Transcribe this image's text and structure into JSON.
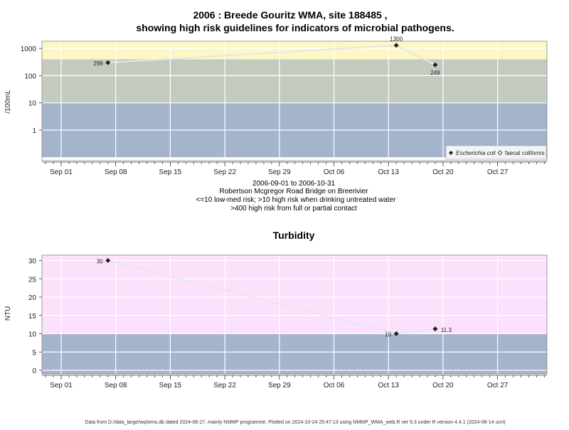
{
  "chart_data": [
    {
      "type": "scatter",
      "title_line1": "2006 : Breede Gouritz WMA, site 188485 ,",
      "title_line2": "showing high risk guidelines for indicators of microbial pathogens.",
      "ylabel": "/100mL",
      "yscale": "log",
      "yticks": [
        "1",
        "10",
        "100",
        "1000"
      ],
      "xticks": [
        "Sep 01",
        "Sep 08",
        "Sep 15",
        "Sep 22",
        "Sep 29",
        "Oct 06",
        "Oct 13",
        "Oct 20",
        "Oct 27"
      ],
      "bands": [
        {
          "from": 0.1,
          "to": 10,
          "color": "#a3b4cc"
        },
        {
          "from": 10,
          "to": 400,
          "color": "#c3cbc0"
        },
        {
          "from": 400,
          "to": 2000,
          "color": "#fcf7c5"
        }
      ],
      "series": [
        {
          "name": "Escherichia coli",
          "marker": "filled-diamond",
          "points": [
            {
              "x": "2006-09-07",
              "y": 299,
              "label": "299"
            },
            {
              "x": "2006-10-14",
              "y": 1300,
              "label": "1300"
            },
            {
              "x": "2006-10-19",
              "y": 249,
              "label": "249"
            }
          ]
        },
        {
          "name": "faecal coliforms",
          "marker": "open-diamond",
          "points": []
        }
      ],
      "caption": [
        "2006-09-01 to 2006-10-31",
        "Robertson Mcgregor Road Bridge on Breerivier",
        "<=10 low-med risk; >10 high risk when drinking untreated water",
        ">400 high risk from full or partial contact"
      ]
    },
    {
      "type": "scatter",
      "title": "Turbidity",
      "ylabel": "NTU",
      "yticks": [
        "0",
        "5",
        "10",
        "15",
        "20",
        "25",
        "30"
      ],
      "ylim": [
        -1,
        31.5
      ],
      "xticks": [
        "Sep 01",
        "Sep 08",
        "Sep 15",
        "Sep 22",
        "Sep 29",
        "Oct 06",
        "Oct 13",
        "Oct 20",
        "Oct 27"
      ],
      "bands": [
        {
          "from": -1,
          "to": 10,
          "color": "#a3b4cc"
        },
        {
          "from": 10,
          "to": 31.5,
          "color": "#fce1fc"
        }
      ],
      "series": [
        {
          "name": "Turbidity",
          "marker": "filled-diamond",
          "points": [
            {
              "x": "2006-09-07",
              "y": 30,
              "label": "30"
            },
            {
              "x": "2006-10-14",
              "y": 10,
              "label": "10"
            },
            {
              "x": "2006-10-19",
              "y": 11.3,
              "label": "11.3"
            }
          ]
        }
      ]
    }
  ],
  "footer": "Data from D:/data_large/wq/wms.db dated 2024-08-27, mainly NMMP programme. Plotted on 2024-10-24 20:47:13 using NMMP_WMA_web.R ver 9.3 under R version 4.4.1 (2024-06-14 ucrt)"
}
